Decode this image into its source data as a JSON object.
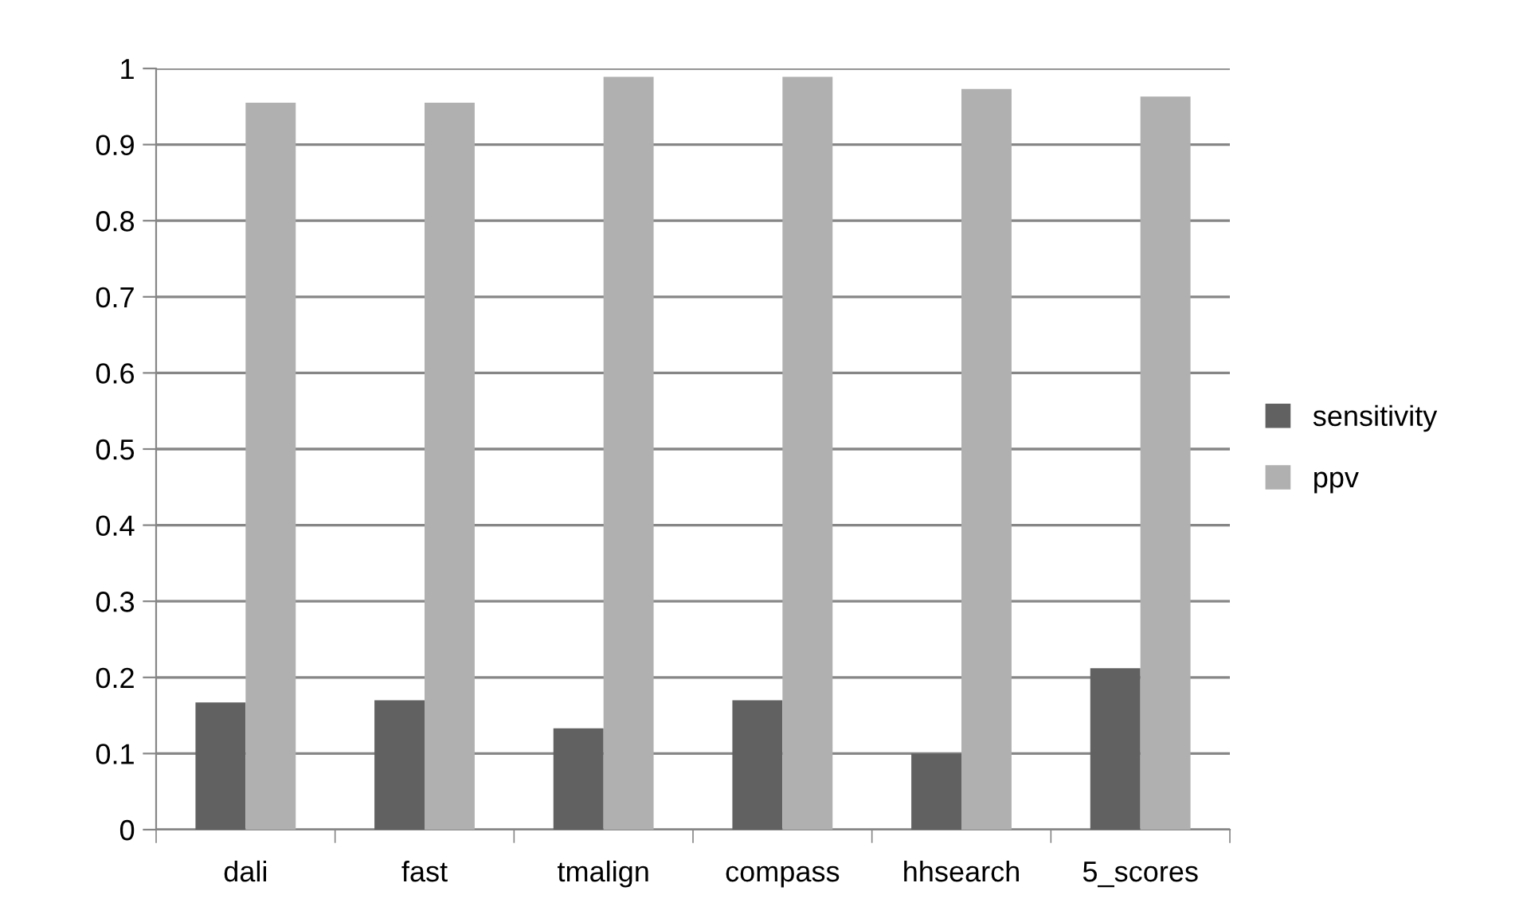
{
  "chart_data": {
    "type": "bar",
    "categories": [
      "dali",
      "fast",
      "tmalign",
      "compass",
      "hhsearch",
      "5_scores"
    ],
    "series": [
      {
        "name": "sensitivity",
        "color": "#616161",
        "values": [
          0.167,
          0.17,
          0.133,
          0.17,
          0.1,
          0.212
        ]
      },
      {
        "name": "ppv",
        "color": "#b0b0b0",
        "values": [
          0.955,
          0.955,
          0.989,
          0.989,
          0.973,
          0.963
        ]
      }
    ],
    "ylim": [
      0,
      1
    ],
    "yticks": [
      0,
      0.1,
      0.2,
      0.3,
      0.4,
      0.5,
      0.6,
      0.7,
      0.8,
      0.9,
      1
    ],
    "grid": "y",
    "legend": "right"
  }
}
